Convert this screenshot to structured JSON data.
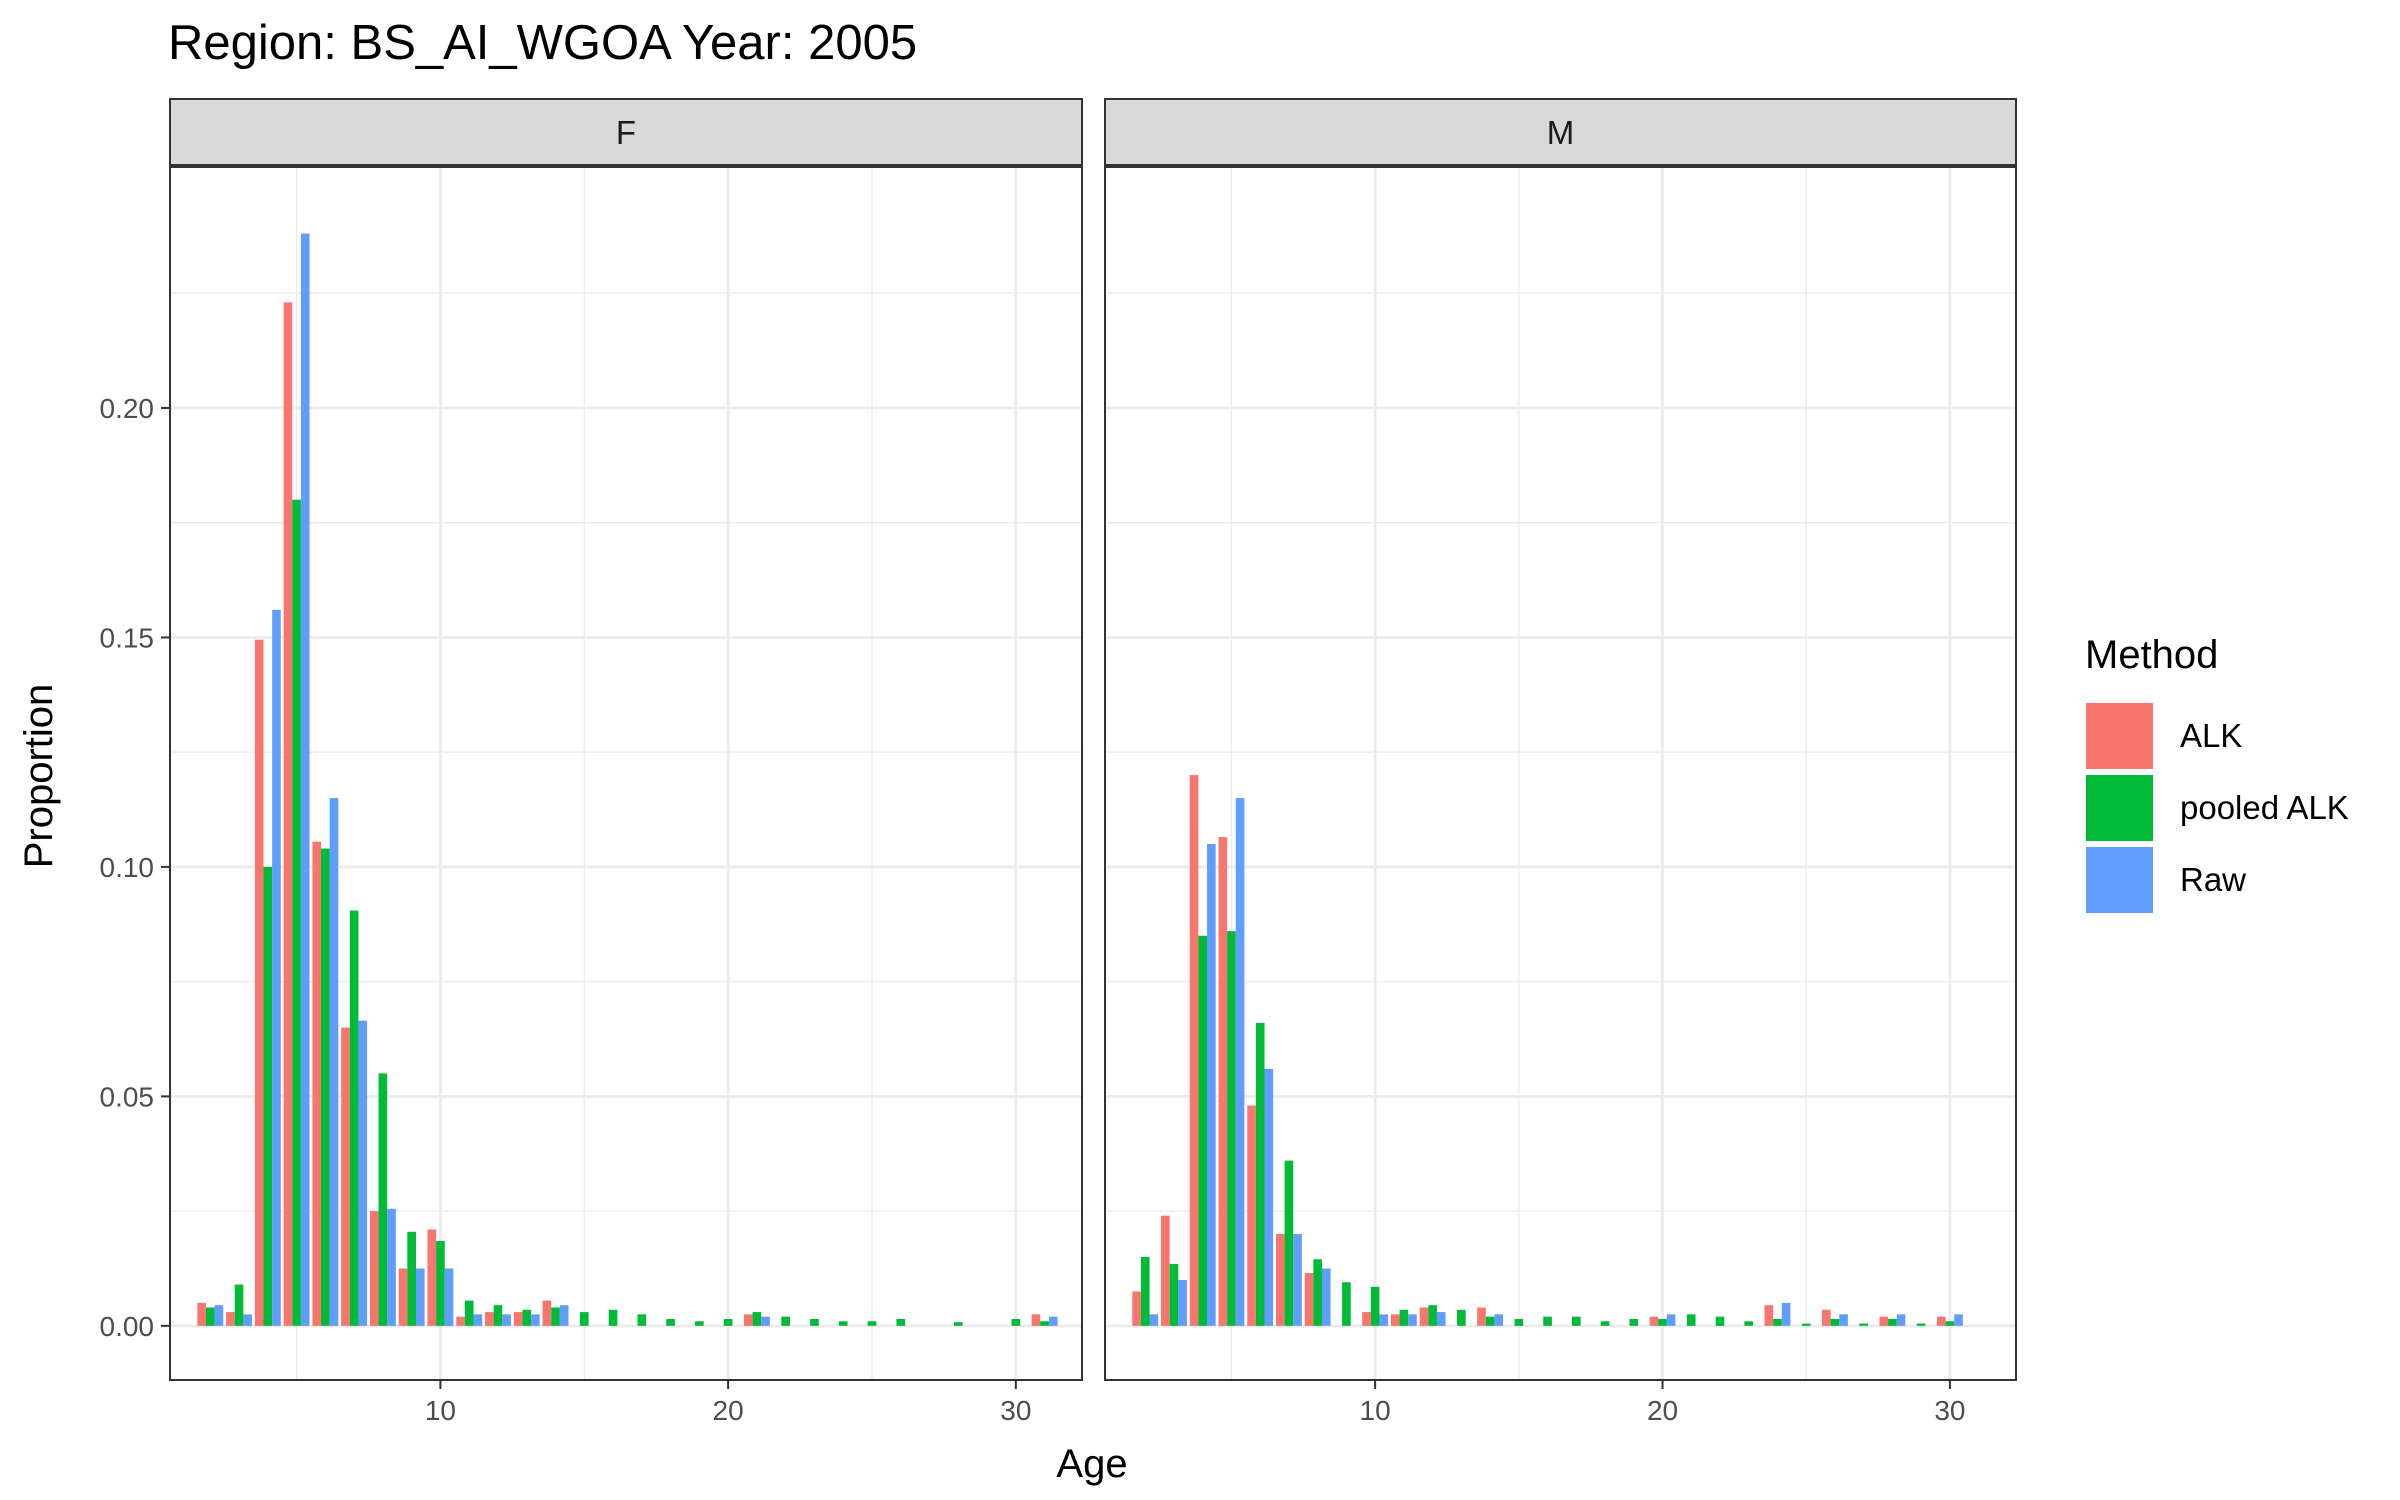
{
  "title": "Region: BS_AI_WGOA Year: 2005",
  "chart_data": {
    "type": "bar",
    "title": "Region: BS_AI_WGOA Year: 2005",
    "xlabel": "Age",
    "ylabel": "Proportion",
    "xlim": [
      0.6,
      32.3
    ],
    "ylim": [
      -0.0118,
      0.2525
    ],
    "x_ticks": [
      10,
      20,
      30
    ],
    "y_ticks": [
      0.0,
      0.05,
      0.1,
      0.15,
      0.2
    ],
    "x_tick_labels": [
      "10",
      "20",
      "30"
    ],
    "y_tick_labels": [
      "0.00",
      "0.05",
      "0.10",
      "0.15",
      "0.20"
    ],
    "grid": true,
    "legend": {
      "title": "Method",
      "position": "right",
      "entries": [
        {
          "name": "ALK",
          "color": "#F8766D"
        },
        {
          "name": "pooled ALK",
          "color": "#00BA38"
        },
        {
          "name": "Raw",
          "color": "#619CFF"
        }
      ]
    },
    "panels": [
      {
        "name": "F",
        "series": [
          {
            "name": "ALK",
            "color": "#F8766D",
            "x": [
              2,
              3,
              4,
              5,
              6,
              7,
              8,
              9,
              10,
              11,
              12,
              13,
              14,
              21,
              31
            ],
            "values": [
              0.005,
              0.003,
              0.1495,
              0.223,
              0.1055,
              0.065,
              0.025,
              0.0125,
              0.021,
              0.002,
              0.003,
              0.003,
              0.0055,
              0.0025,
              0.0025
            ]
          },
          {
            "name": "pooled ALK",
            "color": "#00BA38",
            "x": [
              2,
              3,
              4,
              5,
              6,
              7,
              8,
              9,
              10,
              11,
              12,
              13,
              14,
              15,
              16,
              17,
              18,
              19,
              20,
              21,
              22,
              23,
              24,
              25,
              26,
              28,
              30,
              31
            ],
            "values": [
              0.004,
              0.009,
              0.1,
              0.18,
              0.104,
              0.0905,
              0.055,
              0.0205,
              0.0185,
              0.0055,
              0.0045,
              0.0035,
              0.004,
              0.003,
              0.0035,
              0.0025,
              0.0015,
              0.001,
              0.0015,
              0.003,
              0.002,
              0.0015,
              0.001,
              0.001,
              0.0015,
              0.0008,
              0.0015,
              0.001
            ]
          },
          {
            "name": "Raw",
            "color": "#619CFF",
            "x": [
              2,
              3,
              4,
              5,
              6,
              7,
              8,
              9,
              10,
              11,
              12,
              13,
              14,
              21,
              31
            ],
            "values": [
              0.0045,
              0.0025,
              0.156,
              0.238,
              0.115,
              0.0665,
              0.0255,
              0.0125,
              0.0125,
              0.0025,
              0.0025,
              0.0025,
              0.0045,
              0.002,
              0.002
            ]
          }
        ]
      },
      {
        "name": "M",
        "series": [
          {
            "name": "ALK",
            "color": "#F8766D",
            "x": [
              2,
              3,
              4,
              5,
              6,
              7,
              8,
              10,
              11,
              12,
              14,
              20,
              24,
              26,
              28,
              30
            ],
            "values": [
              0.0075,
              0.024,
              0.12,
              0.1065,
              0.048,
              0.02,
              0.0115,
              0.003,
              0.0025,
              0.004,
              0.004,
              0.002,
              0.0045,
              0.0035,
              0.002,
              0.002
            ]
          },
          {
            "name": "pooled ALK",
            "color": "#00BA38",
            "x": [
              2,
              3,
              4,
              5,
              6,
              7,
              8,
              9,
              10,
              11,
              12,
              13,
              14,
              15,
              16,
              17,
              18,
              19,
              20,
              21,
              22,
              23,
              24,
              25,
              26,
              27,
              28,
              29,
              30
            ],
            "values": [
              0.015,
              0.0135,
              0.085,
              0.086,
              0.066,
              0.036,
              0.0145,
              0.0095,
              0.0085,
              0.0035,
              0.0045,
              0.0035,
              0.002,
              0.0015,
              0.002,
              0.002,
              0.001,
              0.0015,
              0.0015,
              0.0025,
              0.002,
              0.001,
              0.0015,
              0.0005,
              0.0015,
              0.0005,
              0.0015,
              0.0005,
              0.001
            ]
          },
          {
            "name": "Raw",
            "color": "#619CFF",
            "x": [
              2,
              3,
              4,
              5,
              6,
              7,
              8,
              10,
              11,
              12,
              14,
              20,
              24,
              26,
              28,
              30
            ],
            "values": [
              0.0025,
              0.01,
              0.105,
              0.115,
              0.056,
              0.02,
              0.0125,
              0.0025,
              0.0025,
              0.003,
              0.0025,
              0.0025,
              0.005,
              0.0025,
              0.0025,
              0.0025
            ]
          }
        ]
      }
    ]
  }
}
